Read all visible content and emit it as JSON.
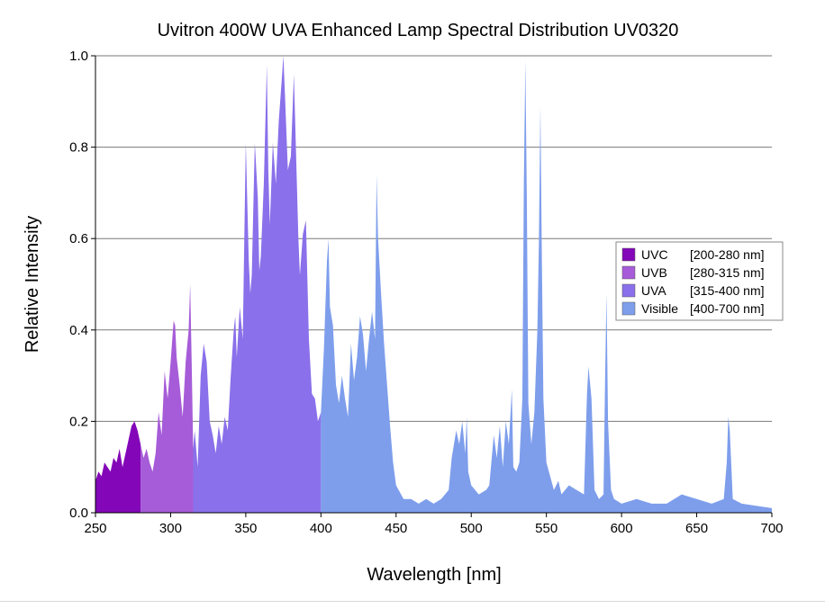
{
  "chart_data": {
    "type": "area",
    "title": "Uvitron 400W UVA Enhanced Lamp Spectral Distribution UV0320",
    "xlabel": "Wavelength [nm]",
    "ylabel": "Relative Intensity",
    "xlim": [
      250,
      700
    ],
    "ylim": [
      0.0,
      1.0
    ],
    "x_ticks": [
      "250",
      "300",
      "350",
      "400",
      "450",
      "500",
      "550",
      "600",
      "650",
      "700"
    ],
    "y_ticks": [
      "0.0",
      "0.2",
      "0.4",
      "0.6",
      "0.8",
      "1.0"
    ],
    "grid": "horizontal",
    "legend_position": "right",
    "bands": [
      {
        "name": "UVC",
        "range_label": "[200-280 nm]",
        "from": 250,
        "to": 280,
        "color": "#8307b8"
      },
      {
        "name": "UVB",
        "range_label": "[280-315 nm]",
        "from": 280,
        "to": 315,
        "color": "#a65cd8"
      },
      {
        "name": "UVA",
        "range_label": "[315-400 nm]",
        "from": 315,
        "to": 400,
        "color": "#8a70ea"
      },
      {
        "name": "Visible",
        "range_label": "[400-700 nm]",
        "from": 400,
        "to": 700,
        "color": "#7e9eec"
      }
    ],
    "series": [
      {
        "x": [
          250,
          252,
          254,
          256,
          258,
          260,
          262,
          264,
          266,
          268,
          270,
          272,
          274,
          276,
          278,
          280,
          282,
          284,
          286,
          288,
          290,
          292,
          294,
          296,
          298,
          300,
          302,
          303,
          304,
          306,
          308,
          310,
          312,
          313,
          314,
          315,
          316,
          318,
          320,
          322,
          324,
          326,
          328,
          330,
          332,
          334,
          336,
          338,
          340,
          342,
          343,
          344,
          346,
          348,
          350,
          352,
          353,
          354,
          356,
          358,
          359,
          360,
          362,
          364,
          365,
          366,
          368,
          370,
          372,
          374,
          375,
          376,
          378,
          380,
          382,
          384,
          385,
          386,
          388,
          390,
          392,
          394,
          396,
          398,
          400,
          402,
          404,
          405,
          406,
          408,
          410,
          412,
          414,
          416,
          418,
          420,
          422,
          424,
          426,
          428,
          430,
          432,
          434,
          436,
          437,
          438,
          440,
          442,
          444,
          446,
          448,
          450,
          455,
          460,
          465,
          470,
          475,
          480,
          485,
          487,
          490,
          492,
          494,
          496,
          497,
          498,
          500,
          505,
          510,
          512,
          515,
          517,
          519,
          521,
          523,
          525,
          527,
          528,
          530,
          532,
          534,
          535,
          536,
          537,
          538,
          540,
          542,
          544,
          545,
          546,
          547,
          548,
          550,
          555,
          558,
          560,
          565,
          570,
          575,
          577,
          578,
          580,
          582,
          585,
          588,
          589,
          590,
          591,
          593,
          595,
          600,
          610,
          620,
          630,
          640,
          650,
          660,
          668,
          670,
          671,
          672,
          674,
          680,
          690,
          700
        ],
        "y": [
          0.07,
          0.09,
          0.08,
          0.11,
          0.1,
          0.09,
          0.12,
          0.11,
          0.14,
          0.1,
          0.13,
          0.16,
          0.19,
          0.2,
          0.18,
          0.15,
          0.12,
          0.14,
          0.11,
          0.09,
          0.13,
          0.22,
          0.17,
          0.31,
          0.25,
          0.33,
          0.42,
          0.41,
          0.34,
          0.28,
          0.21,
          0.33,
          0.4,
          0.5,
          0.33,
          0.14,
          0.18,
          0.1,
          0.3,
          0.37,
          0.33,
          0.2,
          0.17,
          0.13,
          0.19,
          0.15,
          0.21,
          0.18,
          0.3,
          0.4,
          0.43,
          0.34,
          0.45,
          0.38,
          0.81,
          0.55,
          0.48,
          0.52,
          0.81,
          0.69,
          0.53,
          0.56,
          0.72,
          0.98,
          0.75,
          0.63,
          0.81,
          0.72,
          0.86,
          0.95,
          1.0,
          0.92,
          0.75,
          0.78,
          0.96,
          0.72,
          0.6,
          0.52,
          0.61,
          0.64,
          0.38,
          0.26,
          0.25,
          0.2,
          0.22,
          0.36,
          0.55,
          0.6,
          0.45,
          0.41,
          0.28,
          0.24,
          0.3,
          0.25,
          0.21,
          0.37,
          0.29,
          0.34,
          0.43,
          0.39,
          0.31,
          0.38,
          0.44,
          0.38,
          0.74,
          0.6,
          0.48,
          0.37,
          0.28,
          0.19,
          0.11,
          0.06,
          0.03,
          0.03,
          0.02,
          0.03,
          0.02,
          0.03,
          0.05,
          0.12,
          0.18,
          0.15,
          0.2,
          0.13,
          0.21,
          0.09,
          0.06,
          0.04,
          0.05,
          0.06,
          0.17,
          0.12,
          0.19,
          0.1,
          0.2,
          0.15,
          0.27,
          0.1,
          0.09,
          0.11,
          0.25,
          0.72,
          0.99,
          0.68,
          0.24,
          0.15,
          0.22,
          0.4,
          0.59,
          0.89,
          0.55,
          0.25,
          0.11,
          0.05,
          0.07,
          0.04,
          0.06,
          0.05,
          0.04,
          0.26,
          0.32,
          0.25,
          0.05,
          0.03,
          0.04,
          0.28,
          0.48,
          0.2,
          0.05,
          0.03,
          0.02,
          0.03,
          0.02,
          0.02,
          0.04,
          0.03,
          0.02,
          0.03,
          0.11,
          0.21,
          0.18,
          0.03,
          0.02,
          0.015,
          0.01
        ]
      }
    ],
    "legend": [
      {
        "name": "UVC",
        "range": "[200-280 nm]"
      },
      {
        "name": "UVB",
        "range": "[280-315 nm]"
      },
      {
        "name": "UVA",
        "range": "[315-400 nm]"
      },
      {
        "name": "Visible",
        "range": "[400-700 nm]"
      }
    ]
  }
}
